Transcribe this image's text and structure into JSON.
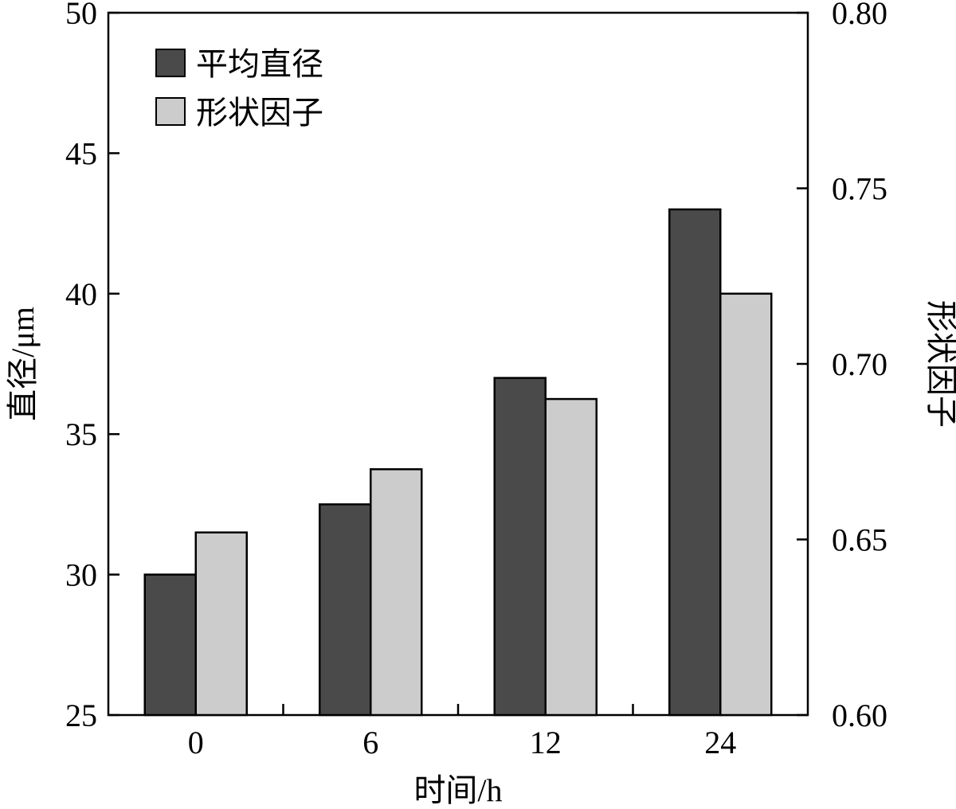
{
  "chart_data": {
    "type": "bar",
    "categories": [
      "0",
      "6",
      "12",
      "24"
    ],
    "series": [
      {
        "name": "平均直径",
        "axis": "left",
        "color": "#4a4a4a",
        "values": [
          30.0,
          32.5,
          37.0,
          43.0
        ]
      },
      {
        "name": "形状因子",
        "axis": "right",
        "color": "#cccccc",
        "values": [
          0.652,
          0.67,
          0.69,
          0.72
        ]
      }
    ],
    "xlabel": "时间/h",
    "ylabel_left": "直径/μm",
    "ylabel_right": "形状因子",
    "ylim_left": [
      25,
      50
    ],
    "ylim_right": [
      0.6,
      0.8
    ],
    "yticks_left": [
      "25",
      "30",
      "35",
      "40",
      "45",
      "50"
    ],
    "yticks_right": [
      "0.60",
      "0.65",
      "0.70",
      "0.75",
      "0.80"
    ],
    "grid": false,
    "legend_position": "top-left"
  }
}
